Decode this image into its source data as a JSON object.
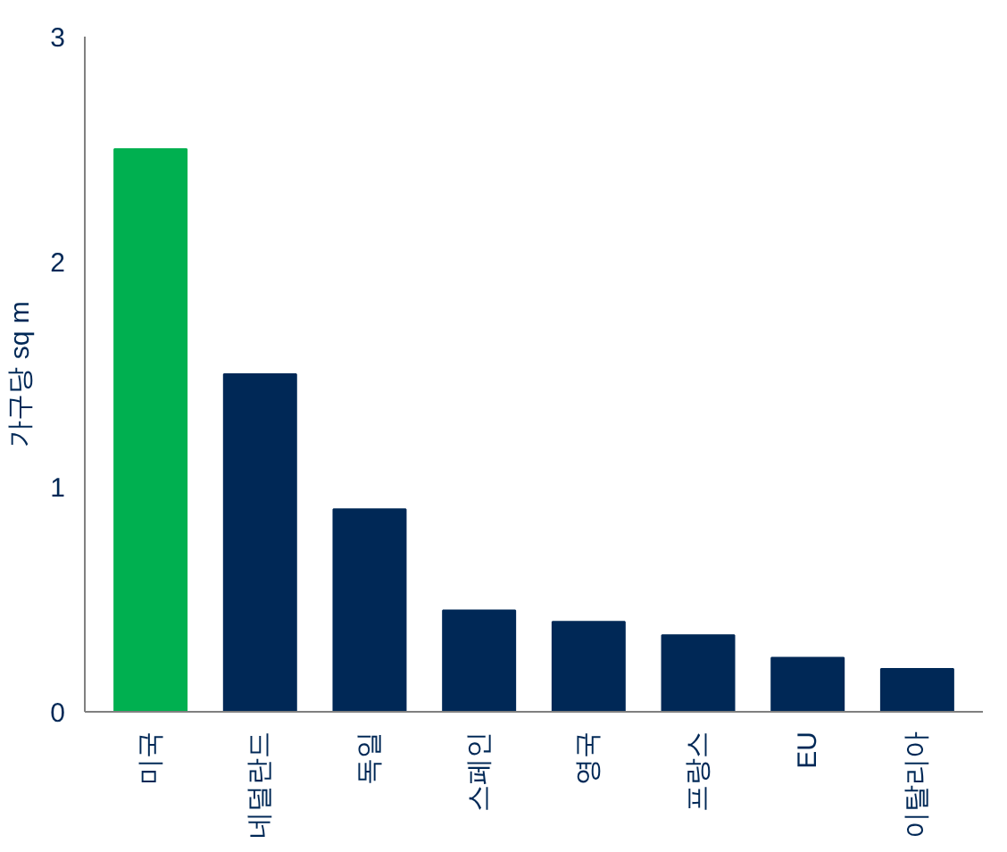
{
  "chart_data": {
    "type": "bar",
    "ylabel": "가구당 sq m",
    "categories": [
      "미국",
      "네덜란드",
      "독일",
      "스페인",
      "영국",
      "프랑스",
      "EU",
      "이탈리아"
    ],
    "values": [
      2.5,
      1.5,
      0.9,
      0.45,
      0.4,
      0.34,
      0.24,
      0.19
    ],
    "colors": [
      "#00b050",
      "#002856",
      "#002856",
      "#002856",
      "#002856",
      "#002856",
      "#002856",
      "#002856"
    ],
    "ylim": [
      0,
      3
    ],
    "yticks": [
      0,
      1,
      2,
      3
    ],
    "grid": false
  }
}
